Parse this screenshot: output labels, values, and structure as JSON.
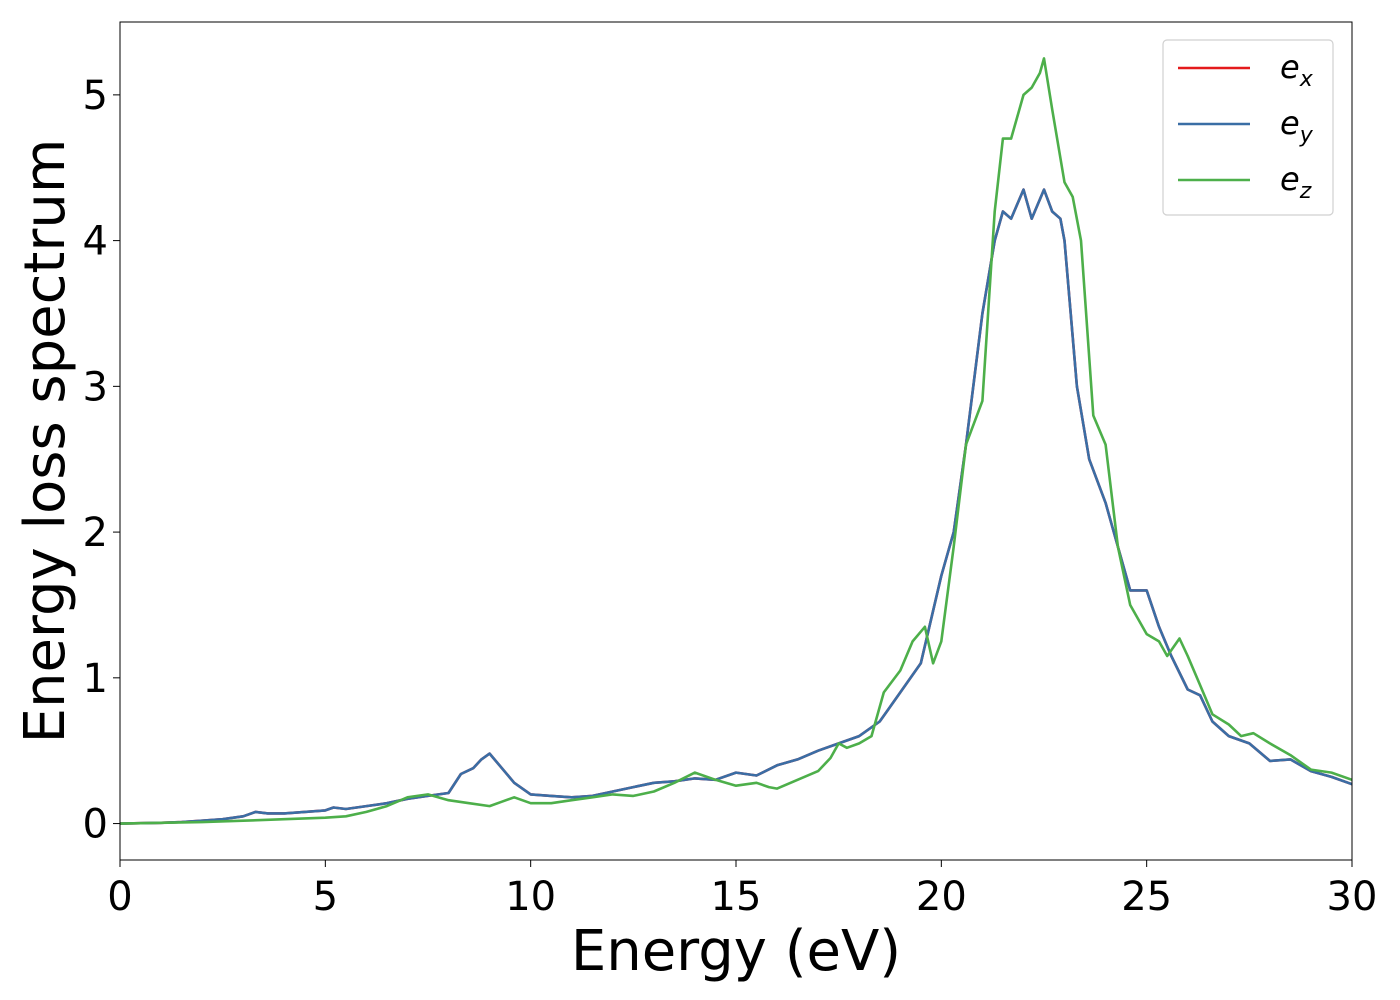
{
  "chart_data": {
    "type": "line",
    "xlabel": "Energy (eV)",
    "ylabel": "Energy loss spectrum",
    "xlim": [
      0,
      30
    ],
    "ylim": [
      -0.25,
      5.5
    ],
    "xticks": [
      0,
      5,
      10,
      15,
      20,
      25,
      30
    ],
    "yticks": [
      0,
      1,
      2,
      3,
      4,
      5
    ],
    "xtick_labels": [
      "0",
      "5",
      "10",
      "15",
      "20",
      "25",
      "30"
    ],
    "ytick_labels": [
      "0",
      "1",
      "2",
      "3",
      "4",
      "5"
    ],
    "grid": false,
    "legend_position": "top-right",
    "series": [
      {
        "name": "e_x",
        "label_base": "e",
        "label_sub": "x",
        "color": "#e41a1c",
        "x": [
          0,
          1,
          1.5,
          2,
          2.5,
          3,
          3.3,
          3.6,
          4,
          4.5,
          5,
          5.2,
          5.5,
          6,
          6.5,
          7,
          7.5,
          8,
          8.3,
          8.6,
          8.8,
          9,
          9.3,
          9.6,
          10,
          10.5,
          11,
          11.5,
          12,
          12.5,
          13,
          13.5,
          14,
          14.5,
          15,
          15.5,
          16,
          16.5,
          17,
          17.5,
          18,
          18.5,
          19,
          19.5,
          20,
          20.3,
          20.6,
          21,
          21.3,
          21.5,
          21.7,
          22,
          22.2,
          22.5,
          22.7,
          22.9,
          23,
          23.3,
          23.6,
          24,
          24.3,
          24.6,
          25,
          25.3,
          25.6,
          26,
          26.3,
          26.6,
          27,
          27.5,
          28,
          28.5,
          29,
          29.5,
          30
        ],
        "values": [
          0,
          0.005,
          0.01,
          0.02,
          0.03,
          0.05,
          0.08,
          0.07,
          0.07,
          0.08,
          0.09,
          0.11,
          0.1,
          0.12,
          0.14,
          0.17,
          0.19,
          0.21,
          0.34,
          0.38,
          0.44,
          0.48,
          0.38,
          0.28,
          0.2,
          0.19,
          0.18,
          0.19,
          0.22,
          0.25,
          0.28,
          0.29,
          0.31,
          0.3,
          0.35,
          0.33,
          0.4,
          0.44,
          0.5,
          0.55,
          0.6,
          0.7,
          0.9,
          1.1,
          1.7,
          2.0,
          2.6,
          3.5,
          4.0,
          4.2,
          4.15,
          4.35,
          4.15,
          4.35,
          4.2,
          4.15,
          4.0,
          3.0,
          2.5,
          2.2,
          1.9,
          1.6,
          1.6,
          1.35,
          1.15,
          0.92,
          0.88,
          0.7,
          0.6,
          0.55,
          0.43,
          0.44,
          0.36,
          0.32,
          0.27
        ]
      },
      {
        "name": "e_y",
        "label_base": "e",
        "label_sub": "y",
        "color": "#3a6ea5",
        "x": [
          0,
          1,
          1.5,
          2,
          2.5,
          3,
          3.3,
          3.6,
          4,
          4.5,
          5,
          5.2,
          5.5,
          6,
          6.5,
          7,
          7.5,
          8,
          8.3,
          8.6,
          8.8,
          9,
          9.3,
          9.6,
          10,
          10.5,
          11,
          11.5,
          12,
          12.5,
          13,
          13.5,
          14,
          14.5,
          15,
          15.5,
          16,
          16.5,
          17,
          17.5,
          18,
          18.5,
          19,
          19.5,
          20,
          20.3,
          20.6,
          21,
          21.3,
          21.5,
          21.7,
          22,
          22.2,
          22.5,
          22.7,
          22.9,
          23,
          23.3,
          23.6,
          24,
          24.3,
          24.6,
          25,
          25.3,
          25.6,
          26,
          26.3,
          26.6,
          27,
          27.5,
          28,
          28.5,
          29,
          29.5,
          30
        ],
        "values": [
          0,
          0.005,
          0.01,
          0.02,
          0.03,
          0.05,
          0.08,
          0.07,
          0.07,
          0.08,
          0.09,
          0.11,
          0.1,
          0.12,
          0.14,
          0.17,
          0.19,
          0.21,
          0.34,
          0.38,
          0.44,
          0.48,
          0.38,
          0.28,
          0.2,
          0.19,
          0.18,
          0.19,
          0.22,
          0.25,
          0.28,
          0.29,
          0.31,
          0.3,
          0.35,
          0.33,
          0.4,
          0.44,
          0.5,
          0.55,
          0.6,
          0.7,
          0.9,
          1.1,
          1.7,
          2.0,
          2.6,
          3.5,
          4.0,
          4.2,
          4.15,
          4.35,
          4.15,
          4.35,
          4.2,
          4.15,
          4.0,
          3.0,
          2.5,
          2.2,
          1.9,
          1.6,
          1.6,
          1.35,
          1.15,
          0.92,
          0.88,
          0.7,
          0.6,
          0.55,
          0.43,
          0.44,
          0.36,
          0.32,
          0.27
        ]
      },
      {
        "name": "e_z",
        "label_base": "e",
        "label_sub": "z",
        "color": "#4daf4a",
        "x": [
          0,
          1,
          2,
          3,
          4,
          5,
          5.5,
          6,
          6.5,
          7,
          7.5,
          8,
          8.5,
          9,
          9.3,
          9.6,
          10,
          10.5,
          11,
          11.5,
          12,
          12.5,
          13,
          13.5,
          14,
          14.5,
          15,
          15.5,
          15.8,
          16,
          16.5,
          17,
          17.3,
          17.5,
          17.7,
          18,
          18.3,
          18.6,
          19,
          19.3,
          19.6,
          19.8,
          20,
          20.3,
          20.6,
          21,
          21.3,
          21.5,
          21.7,
          22,
          22.2,
          22.4,
          22.5,
          22.7,
          23,
          23.2,
          23.4,
          23.7,
          24,
          24.3,
          24.6,
          25,
          25.3,
          25.5,
          25.8,
          26,
          26.3,
          26.6,
          27,
          27.3,
          27.6,
          28,
          28.5,
          29,
          29.5,
          30
        ],
        "values": [
          0,
          0.005,
          0.01,
          0.02,
          0.03,
          0.04,
          0.05,
          0.08,
          0.12,
          0.18,
          0.2,
          0.16,
          0.14,
          0.12,
          0.15,
          0.18,
          0.14,
          0.14,
          0.16,
          0.18,
          0.2,
          0.19,
          0.22,
          0.28,
          0.35,
          0.3,
          0.26,
          0.28,
          0.25,
          0.24,
          0.3,
          0.36,
          0.45,
          0.55,
          0.52,
          0.55,
          0.6,
          0.9,
          1.05,
          1.25,
          1.35,
          1.1,
          1.25,
          1.9,
          2.6,
          2.9,
          4.2,
          4.7,
          4.7,
          5.0,
          5.05,
          5.15,
          5.25,
          4.9,
          4.4,
          4.3,
          4.0,
          2.8,
          2.6,
          1.9,
          1.5,
          1.3,
          1.25,
          1.15,
          1.27,
          1.15,
          0.95,
          0.75,
          0.68,
          0.6,
          0.62,
          0.55,
          0.47,
          0.37,
          0.35,
          0.3
        ]
      }
    ]
  }
}
